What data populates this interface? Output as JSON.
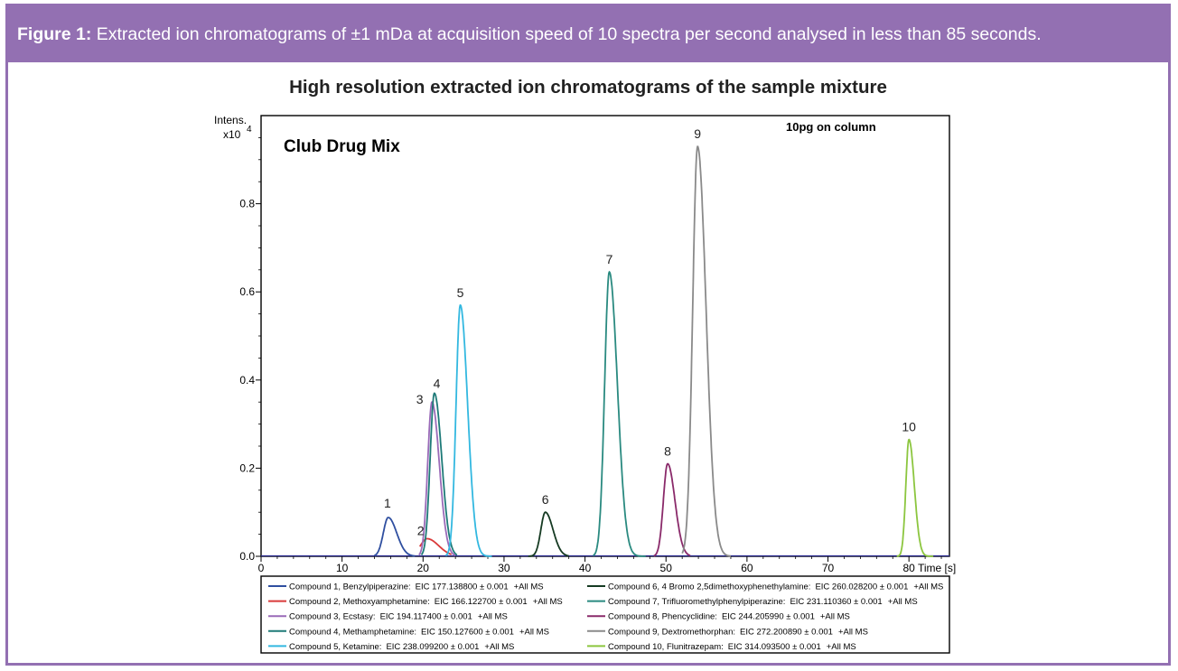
{
  "figure": {
    "caption_label": "Figure 1:",
    "caption_text": " Extracted ion chromatograms of ±1 mDa at acquisition speed of 10 spectra per second analysed in less than 85 seconds."
  },
  "chart_data": {
    "type": "line",
    "title": "High resolution extracted ion chromatograms of the sample mixture",
    "ylabel_line1": "Intens.",
    "ylabel_line2": "x10",
    "ylabel_exp": "4",
    "xlabel": "Time [s]",
    "xlim": [
      0,
      85
    ],
    "ylim": [
      0,
      1.0
    ],
    "xticks": [
      0,
      10,
      20,
      30,
      40,
      50,
      60,
      70,
      80
    ],
    "yticks": [
      0.0,
      0.2,
      0.4,
      0.6,
      0.8
    ],
    "ytick_labels": [
      "0.0",
      "0.2",
      "0.4",
      "0.6",
      "0.8"
    ],
    "annotations": {
      "sample": "Club Drug Mix",
      "amount": "10pg on column"
    },
    "series": [
      {
        "name": "Compound 1, Benzylpiperazine:",
        "eic": "EIC 177.138800 ± 0.001",
        "mode": "+All MS",
        "color": "#2f4fa0",
        "peak_label": "1",
        "apex_x": 15.7,
        "apex_y": 0.088,
        "width": 1.1,
        "range": [
          14.0,
          19.0
        ]
      },
      {
        "name": "Compound 2, Methoxyamphetamine:",
        "eic": "EIC 166.122700 ± 0.001",
        "mode": "+All MS",
        "color": "#d93a3a",
        "peak_label": "2",
        "apex_x": 20.5,
        "apex_y": 0.04,
        "width": 1.5,
        "range": [
          19.6,
          23.5
        ]
      },
      {
        "name": "Compound 3, Ecstasy:",
        "eic": "EIC 194.117400 ± 0.001",
        "mode": "+All MS",
        "color": "#9a6ab8",
        "peak_label": "3",
        "apex_x": 21.1,
        "apex_y": 0.35,
        "width": 0.95,
        "range": [
          19.5,
          24.0
        ]
      },
      {
        "name": "Compound 4, Methamphetamine:",
        "eic": "EIC 150.127600 ± 0.001",
        "mode": "+All MS",
        "color": "#1e7a78",
        "peak_label": "4",
        "apex_x": 21.4,
        "apex_y": 0.37,
        "width": 0.95,
        "range": [
          19.8,
          24.2
        ]
      },
      {
        "name": "Compound 5, Ketamine:",
        "eic": "EIC 238.099200 ± 0.001",
        "mode": "+All MS",
        "color": "#33b8e0",
        "peak_label": "5",
        "apex_x": 24.6,
        "apex_y": 0.57,
        "width": 0.95,
        "range": [
          22.8,
          28.5
        ]
      },
      {
        "name": "Compound 6, 4 Bromo 2,5dimethoxyphenethylamine:",
        "eic": "EIC 260.028200 ± 0.001",
        "mode": "+All MS",
        "color": "#153a22",
        "peak_label": "6",
        "apex_x": 35.1,
        "apex_y": 0.1,
        "width": 1.0,
        "range": [
          33.0,
          38.0
        ]
      },
      {
        "name": "Compound 7, Trifluoromethylphenylpiperazine:",
        "eic": "EIC 231.110360 ± 0.001",
        "mode": "+All MS",
        "color": "#2a8a80",
        "peak_label": "7",
        "apex_x": 43.0,
        "apex_y": 0.645,
        "width": 1.05,
        "range": [
          41.0,
          47.5
        ]
      },
      {
        "name": "Compound 8, Phencyclidine:",
        "eic": "EIC 244.205990 ± 0.001",
        "mode": "+All MS",
        "color": "#8a2a6a",
        "peak_label": "8",
        "apex_x": 50.2,
        "apex_y": 0.21,
        "width": 0.95,
        "range": [
          48.5,
          53.0
        ]
      },
      {
        "name": "Compound 9, Dextromethorphan:",
        "eic": "EIC 272.200890 ± 0.001",
        "mode": "+All MS",
        "color": "#8a8a8a",
        "peak_label": "9",
        "apex_x": 53.9,
        "apex_y": 0.93,
        "width": 1.1,
        "range": [
          52.0,
          58.0
        ]
      },
      {
        "name": "Compound 10, Flunitrazepam:",
        "eic": "EIC 314.093500 ± 0.001",
        "mode": "+All MS",
        "color": "#8cc63f",
        "peak_label": "10",
        "apex_x": 80.0,
        "apex_y": 0.265,
        "width": 0.7,
        "range": [
          78.5,
          83.0
        ]
      }
    ]
  }
}
